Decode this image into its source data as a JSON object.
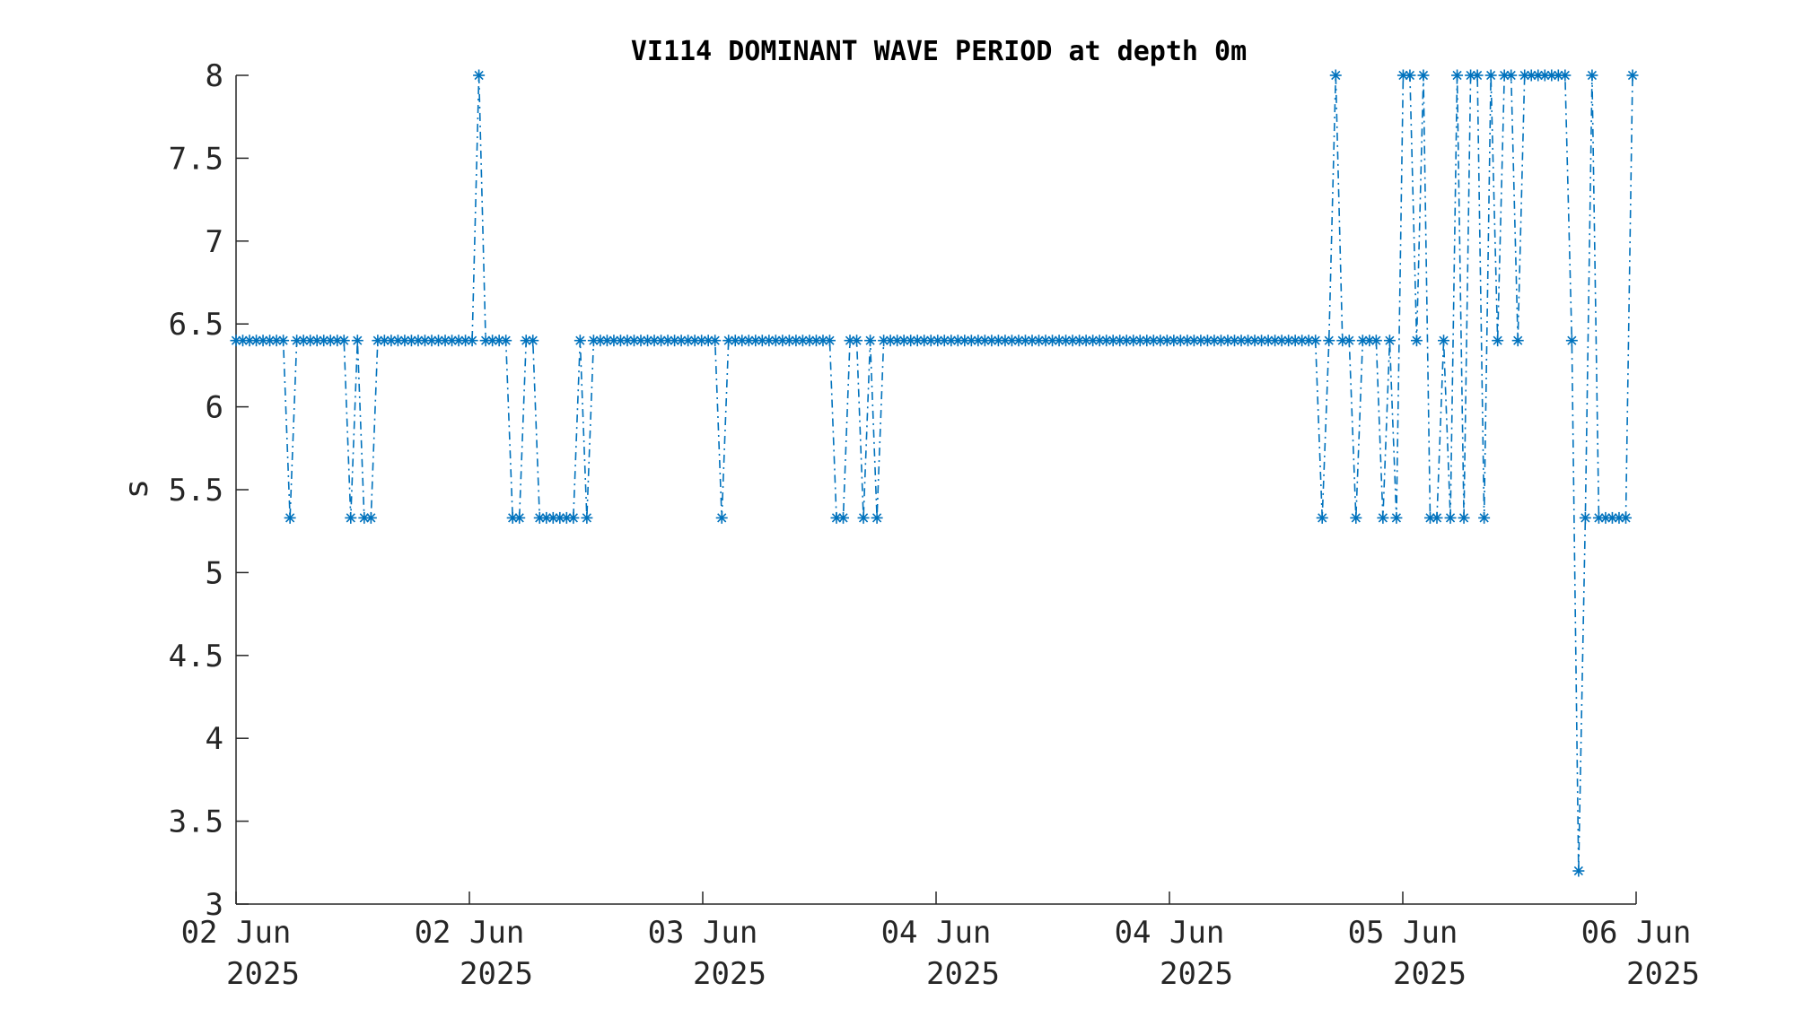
{
  "chart_data": {
    "type": "line",
    "title": "VI114 DOMINANT WAVE PERIOD at depth 0m",
    "xlabel": "",
    "ylabel": "s",
    "ylim": [
      3,
      8
    ],
    "yticks": [
      "3",
      "3.5",
      "4",
      "4.5",
      "5",
      "5.5",
      "6",
      "6.5",
      "7",
      "7.5",
      "8"
    ],
    "xticks": [
      {
        "line1": "02 Jun",
        "line2": "2025"
      },
      {
        "line1": "02 Jun",
        "line2": "2025"
      },
      {
        "line1": "03 Jun",
        "line2": "2025"
      },
      {
        "line1": "04 Jun",
        "line2": "2025"
      },
      {
        "line1": "04 Jun",
        "line2": "2025"
      },
      {
        "line1": "05 Jun",
        "line2": "2025"
      },
      {
        "line1": "06 Jun",
        "line2": "2025"
      }
    ],
    "grid": false,
    "series": [
      {
        "color": "#0072BD",
        "marker": "asterisk",
        "line_style": "dash-dot",
        "values": [
          6.4,
          6.4,
          6.4,
          6.4,
          6.4,
          6.4,
          6.4,
          6.4,
          5.33,
          6.4,
          6.4,
          6.4,
          6.4,
          6.4,
          6.4,
          6.4,
          6.4,
          5.33,
          6.4,
          5.33,
          5.33,
          6.4,
          6.4,
          6.4,
          6.4,
          6.4,
          6.4,
          6.4,
          6.4,
          6.4,
          6.4,
          6.4,
          6.4,
          6.4,
          6.4,
          6.4,
          8.0,
          6.4,
          6.4,
          6.4,
          6.4,
          5.33,
          5.33,
          6.4,
          6.4,
          5.33,
          5.33,
          5.33,
          5.33,
          5.33,
          5.33,
          6.4,
          5.33,
          6.4,
          6.4,
          6.4,
          6.4,
          6.4,
          6.4,
          6.4,
          6.4,
          6.4,
          6.4,
          6.4,
          6.4,
          6.4,
          6.4,
          6.4,
          6.4,
          6.4,
          6.4,
          6.4,
          5.33,
          6.4,
          6.4,
          6.4,
          6.4,
          6.4,
          6.4,
          6.4,
          6.4,
          6.4,
          6.4,
          6.4,
          6.4,
          6.4,
          6.4,
          6.4,
          6.4,
          5.33,
          5.33,
          6.4,
          6.4,
          5.33,
          6.4,
          5.33,
          6.4,
          6.4,
          6.4,
          6.4,
          6.4,
          6.4,
          6.4,
          6.4,
          6.4,
          6.4,
          6.4,
          6.4,
          6.4,
          6.4,
          6.4,
          6.4,
          6.4,
          6.4,
          6.4,
          6.4,
          6.4,
          6.4,
          6.4,
          6.4,
          6.4,
          6.4,
          6.4,
          6.4,
          6.4,
          6.4,
          6.4,
          6.4,
          6.4,
          6.4,
          6.4,
          6.4,
          6.4,
          6.4,
          6.4,
          6.4,
          6.4,
          6.4,
          6.4,
          6.4,
          6.4,
          6.4,
          6.4,
          6.4,
          6.4,
          6.4,
          6.4,
          6.4,
          6.4,
          6.4,
          6.4,
          6.4,
          6.4,
          6.4,
          6.4,
          6.4,
          6.4,
          6.4,
          6.4,
          6.4,
          6.4,
          5.33,
          6.4,
          8.0,
          6.4,
          6.4,
          5.33,
          6.4,
          6.4,
          6.4,
          5.33,
          6.4,
          5.33,
          8.0,
          8.0,
          6.4,
          8.0,
          5.33,
          5.33,
          6.4,
          5.33,
          8.0,
          5.33,
          8.0,
          8.0,
          5.33,
          8.0,
          6.4,
          8.0,
          8.0,
          6.4,
          8.0,
          8.0,
          8.0,
          8.0,
          8.0,
          8.0,
          8.0,
          6.4,
          3.2,
          5.33,
          8.0,
          5.33,
          5.33,
          5.33,
          5.33,
          5.33,
          8.0
        ]
      }
    ]
  }
}
